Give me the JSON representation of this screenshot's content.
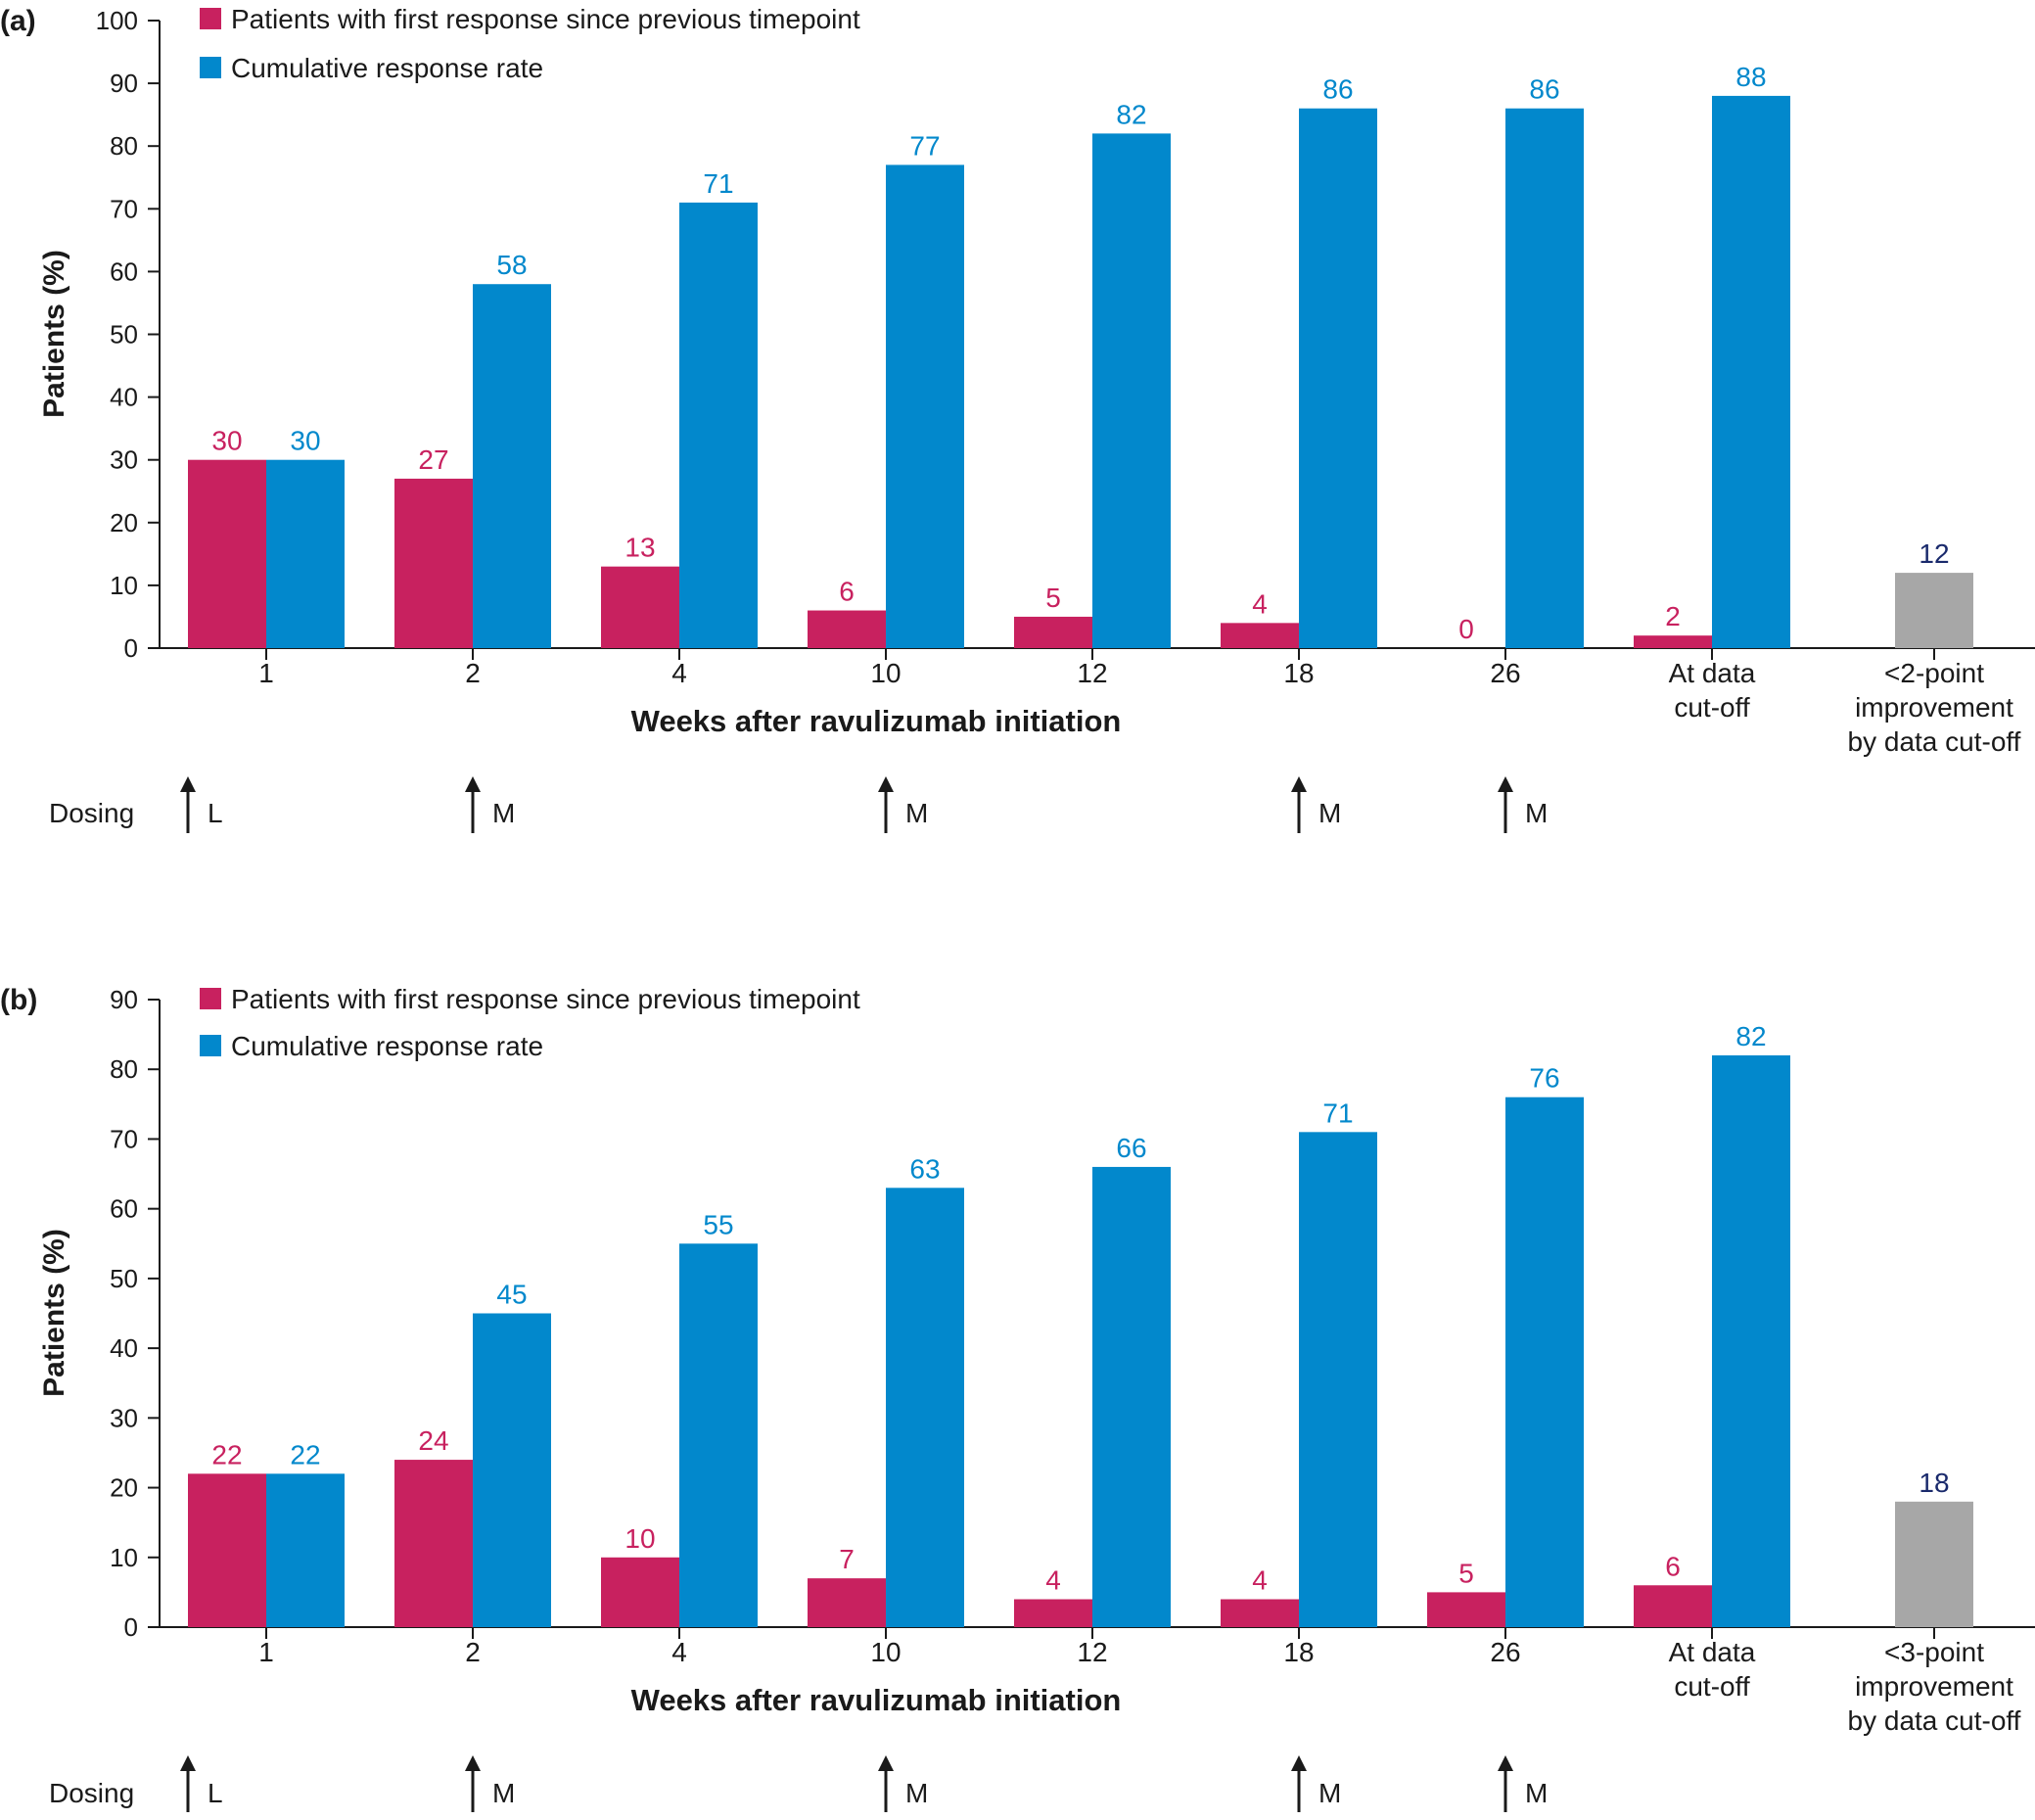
{
  "colors": {
    "first_response": "#c8215f",
    "cumulative": "#0288cc",
    "improvement": "#a7a7a7",
    "improvement_label": "#1a2a6c",
    "axis": "#1a1a1a"
  },
  "dosing_label": "Dosing",
  "dosing_markers": [
    {
      "category_index": 0,
      "letter": "L"
    },
    {
      "category_index": 1,
      "letter": "M"
    },
    {
      "category_index": 3,
      "letter": "M"
    },
    {
      "category_index": 5,
      "letter": "M"
    },
    {
      "category_index": 6,
      "letter": "M"
    }
  ],
  "chart_data": [
    {
      "panel": "(a)",
      "type": "bar",
      "ylabel": "Patients (%)",
      "xlabel": "Weeks after ravulizumab initiation",
      "ylim": [
        0,
        100
      ],
      "yticks": [
        0,
        10,
        20,
        30,
        40,
        50,
        60,
        70,
        80,
        90,
        100
      ],
      "categories": [
        "1",
        "2",
        "4",
        "10",
        "12",
        "18",
        "26",
        "At data cut-off"
      ],
      "series": [
        {
          "name": "Patients with first response since previous timepoint",
          "values": [
            30,
            27,
            13,
            6,
            5,
            4,
            0,
            2
          ]
        },
        {
          "name": "Cumulative response rate",
          "values": [
            30,
            58,
            71,
            77,
            82,
            86,
            86,
            88
          ]
        }
      ],
      "extra_bar": {
        "label": "<2-point improvement by data cut-off",
        "value": 12
      },
      "legend_position": "top-left"
    },
    {
      "panel": "(b)",
      "type": "bar",
      "ylabel": "Patients (%)",
      "xlabel": "Weeks after ravulizumab initiation",
      "ylim": [
        0,
        90
      ],
      "yticks": [
        0,
        10,
        20,
        30,
        40,
        50,
        60,
        70,
        80,
        90
      ],
      "categories": [
        "1",
        "2",
        "4",
        "10",
        "12",
        "18",
        "26",
        "At data cut-off"
      ],
      "series": [
        {
          "name": "Patients with first response since previous timepoint",
          "values": [
            22,
            24,
            10,
            7,
            4,
            4,
            5,
            6
          ]
        },
        {
          "name": "Cumulative response rate",
          "values": [
            22,
            45,
            55,
            63,
            66,
            71,
            76,
            82
          ]
        }
      ],
      "extra_bar": {
        "label": "<3-point improvement by data cut-off",
        "value": 18
      },
      "legend_position": "top-left"
    }
  ]
}
